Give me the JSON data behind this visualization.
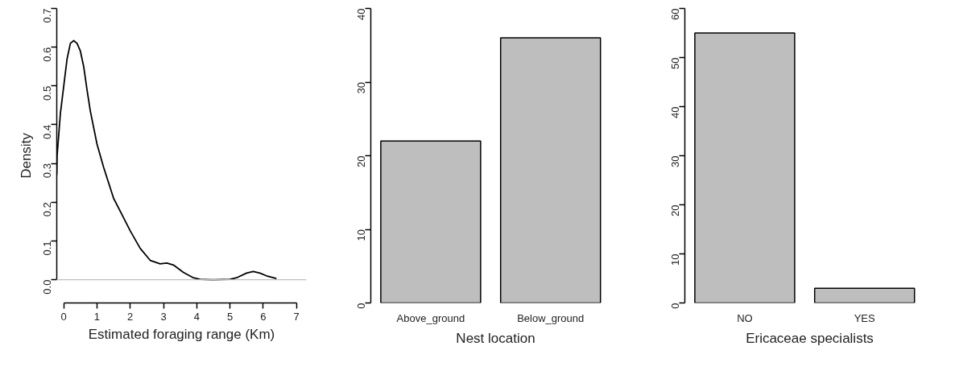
{
  "chart_data": [
    {
      "type": "line",
      "xlabel": "Estimated foraging range (Km)",
      "ylabel": "Density",
      "color": "#000000",
      "x": [
        -0.21,
        -0.2,
        -0.1,
        0,
        0.1,
        0.2,
        0.3,
        0.4,
        0.5,
        0.6,
        0.7,
        0.8,
        1.0,
        1.2,
        1.5,
        1.8,
        2.0,
        2.3,
        2.6,
        2.9,
        3.1,
        3.3,
        3.6,
        3.9,
        4.1,
        4.5,
        5.0,
        5.2,
        5.5,
        5.7,
        5.9,
        6.1,
        6.4
      ],
      "values": [
        0.27,
        0.32,
        0.43,
        0.5,
        0.57,
        0.61,
        0.617,
        0.61,
        0.59,
        0.55,
        0.49,
        0.435,
        0.35,
        0.29,
        0.21,
        0.16,
        0.126,
        0.081,
        0.05,
        0.041,
        0.043,
        0.038,
        0.019,
        0.005,
        0.001,
        0,
        0.001,
        0.005,
        0.017,
        0.021,
        0.017,
        0.01,
        0.003
      ],
      "xlim": [
        -0.21,
        7.3
      ],
      "ylim": [
        -0.06,
        0.7
      ],
      "xticks": [
        0,
        1,
        2,
        3,
        4,
        5,
        6,
        7
      ],
      "yticks": [
        {
          "value": 0,
          "label": "0.0"
        },
        0.1,
        0.2,
        0.3,
        0.4,
        0.5,
        0.6,
        0.7
      ],
      "ref_lines": [
        {
          "axis": "y",
          "value": 0,
          "color": "#bebebe"
        }
      ]
    },
    {
      "type": "bar",
      "xlabel": "Nest location",
      "categories": [
        "Above_ground",
        "Below_ground"
      ],
      "values": [
        22,
        36
      ],
      "color": "#bebebe",
      "ylim": [
        0,
        40
      ],
      "yticks": [
        0,
        10,
        20,
        30,
        40
      ]
    },
    {
      "type": "bar",
      "xlabel": "Ericaceae specialists",
      "categories": [
        "NO",
        "YES"
      ],
      "values": [
        55,
        3
      ],
      "color": "#bebebe",
      "ylim": [
        0,
        60
      ],
      "yticks": [
        0,
        10,
        20,
        30,
        40,
        50,
        60
      ]
    }
  ]
}
